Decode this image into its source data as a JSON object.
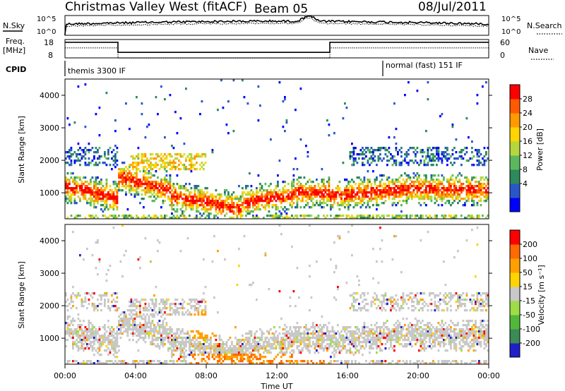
{
  "header": {
    "title": "Christmas Valley West (fitACF)",
    "beam": "Beam 05",
    "date": "08/Jul/2011"
  },
  "top_panels": {
    "nsky_label": "N.Sky",
    "nsky_ticks": [
      "10^5",
      "10^0"
    ],
    "nsearch_label": "N.Search",
    "freq_label": "Freq.",
    "freq_unit": "[MHz]",
    "freq_ticks": [
      "18",
      "8"
    ],
    "nave_label": "Nave",
    "nave_ticks": [
      "60",
      "0"
    ],
    "cpid_label": "CPID",
    "cpid_segments": [
      {
        "text": "themis 3300 IF",
        "start_hour": 0
      },
      {
        "text": "normal (fast) 151 IF",
        "start_hour": 18
      }
    ],
    "freq_profile": [
      {
        "start_hour": 0,
        "end_hour": 3,
        "level": 0.85
      },
      {
        "start_hour": 3,
        "end_hour": 15,
        "level": 0.3
      },
      {
        "start_hour": 15,
        "end_hour": 24,
        "level": 0.85
      }
    ]
  },
  "chart_data": [
    {
      "type": "heatmap",
      "name": "power",
      "ylabel": "Slant Range [km]",
      "y_ticks": [
        "4000",
        "3000",
        "2000",
        "1000"
      ],
      "ylim": [
        200,
        4500
      ],
      "xlim": [
        0,
        24
      ],
      "colorbar_label": "Power [dB]",
      "colorbar_ticks": [
        "28",
        "24",
        "20",
        "16",
        "12",
        "8",
        "4"
      ],
      "colorbar_colors": [
        "#0000ff",
        "#2a57c8",
        "#2d8a5a",
        "#5cb85c",
        "#b5d63c",
        "#ffd400",
        "#ff9a00",
        "#ff5a00",
        "#ff0000"
      ]
    },
    {
      "type": "heatmap",
      "name": "velocity",
      "ylabel": "Slant Range [km]",
      "y_ticks": [
        "4000",
        "3000",
        "2000",
        "1000"
      ],
      "ylim": [
        200,
        4500
      ],
      "xlim": [
        0,
        24
      ],
      "xlabel": "Time UT",
      "x_ticks": [
        "00:00",
        "04:00",
        "08:00",
        "12:00",
        "16:00",
        "20:00",
        "00:00"
      ],
      "colorbar_label": "Velocity [m s⁻¹]",
      "colorbar_ticks": [
        "200",
        "100",
        "50",
        "15",
        "-15",
        "-50",
        "-100",
        "-200"
      ],
      "colorbar_colors": [
        "#2020c8",
        "#3c8a55",
        "#52b83a",
        "#9fdc46",
        "#c8c8c8",
        "#ffd400",
        "#ffa000",
        "#ff6a00",
        "#ff0000"
      ]
    }
  ]
}
